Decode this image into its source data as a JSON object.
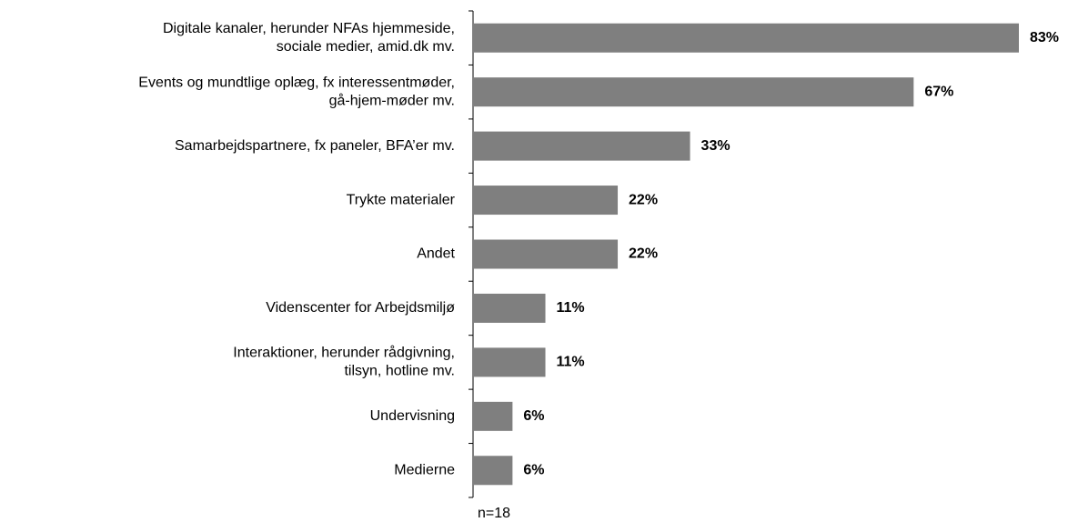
{
  "chart_data": {
    "type": "bar",
    "orientation": "horizontal",
    "categories": [
      [
        "Digitale kanaler, herunder NFAs hjemmeside,",
        "sociale medier, amid.dk mv."
      ],
      [
        "Events og mundtlige oplæg, fx interessentmøder,",
        "gå-hjem-møder mv."
      ],
      [
        "Samarbejdspartnere, fx paneler, BFA’er mv."
      ],
      [
        "Trykte materialer"
      ],
      [
        "Andet"
      ],
      [
        "Videnscenter for Arbejdsmiljø"
      ],
      [
        "Interaktioner, herunder rådgivning,",
        "tilsyn, hotline mv."
      ],
      [
        "Undervisning"
      ],
      [
        "Medierne"
      ]
    ],
    "values": [
      83,
      67,
      33,
      22,
      22,
      11,
      11,
      6,
      6
    ],
    "value_labels": [
      "83%",
      "67%",
      "33%",
      "22%",
      "22%",
      "11%",
      "11%",
      "6%",
      "6%"
    ],
    "color": "#7f7f7f",
    "xlim": [
      0,
      83
    ],
    "annotation": "n=18"
  }
}
